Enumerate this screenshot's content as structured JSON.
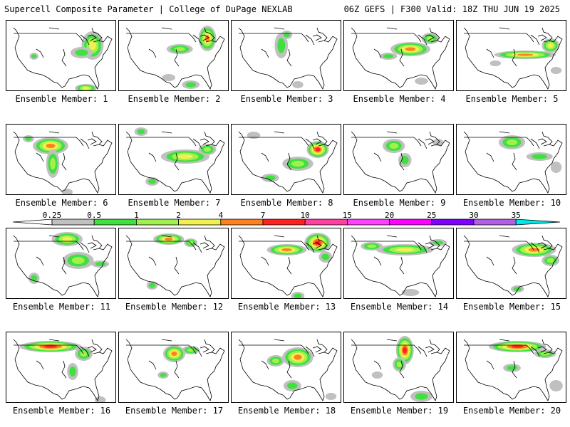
{
  "header": {
    "title_left": "Supercell Composite Parameter | College of DuPage NEXLAB",
    "title_right": "06Z GEFS | F300 Valid: 18Z THU JUN 19 2025"
  },
  "panels": [
    {
      "label": "Ensemble Member: 1",
      "blobs": [
        [
          0.78,
          0.35,
          0.1,
          0.2,
          3
        ],
        [
          0.68,
          0.45,
          0.1,
          0.08,
          1
        ],
        [
          0.25,
          0.5,
          0.04,
          0.05,
          1
        ],
        [
          0.72,
          0.95,
          0.1,
          0.06,
          3
        ]
      ]
    },
    {
      "label": "Ensemble Member: 2",
      "blobs": [
        [
          0.8,
          0.25,
          0.08,
          0.18,
          4
        ],
        [
          0.55,
          0.4,
          0.12,
          0.07,
          2
        ],
        [
          0.65,
          0.9,
          0.08,
          0.06,
          1
        ],
        [
          0.45,
          0.8,
          0.06,
          0.05,
          0
        ]
      ]
    },
    {
      "label": "Ensemble Member: 3",
      "blobs": [
        [
          0.45,
          0.35,
          0.06,
          0.18,
          1
        ],
        [
          0.5,
          0.2,
          0.05,
          0.06,
          1
        ],
        [
          0.6,
          0.9,
          0.05,
          0.05,
          0
        ]
      ]
    },
    {
      "label": "Ensemble Member: 4",
      "blobs": [
        [
          0.6,
          0.4,
          0.18,
          0.1,
          4
        ],
        [
          0.78,
          0.25,
          0.08,
          0.08,
          2
        ],
        [
          0.4,
          0.5,
          0.08,
          0.05,
          1
        ],
        [
          0.7,
          0.85,
          0.06,
          0.05,
          0
        ]
      ]
    },
    {
      "label": "Ensemble Member: 5",
      "blobs": [
        [
          0.62,
          0.48,
          0.28,
          0.06,
          4
        ],
        [
          0.85,
          0.35,
          0.08,
          0.1,
          3
        ],
        [
          0.9,
          0.7,
          0.05,
          0.05,
          0
        ],
        [
          0.35,
          0.6,
          0.05,
          0.04,
          0
        ]
      ]
    },
    {
      "label": "Ensemble Member: 6",
      "blobs": [
        [
          0.4,
          0.3,
          0.16,
          0.12,
          4
        ],
        [
          0.42,
          0.55,
          0.06,
          0.2,
          2
        ],
        [
          0.2,
          0.2,
          0.05,
          0.05,
          1
        ],
        [
          0.55,
          0.95,
          0.05,
          0.05,
          0
        ]
      ]
    },
    {
      "label": "Ensemble Member: 7",
      "blobs": [
        [
          0.6,
          0.45,
          0.22,
          0.1,
          3
        ],
        [
          0.8,
          0.35,
          0.08,
          0.08,
          2
        ],
        [
          0.2,
          0.1,
          0.06,
          0.06,
          1
        ],
        [
          0.3,
          0.8,
          0.06,
          0.06,
          1
        ]
      ]
    },
    {
      "label": "Ensemble Member: 8",
      "blobs": [
        [
          0.78,
          0.35,
          0.1,
          0.12,
          5
        ],
        [
          0.6,
          0.55,
          0.14,
          0.1,
          2
        ],
        [
          0.35,
          0.75,
          0.08,
          0.06,
          1
        ],
        [
          0.2,
          0.15,
          0.06,
          0.05,
          0
        ]
      ]
    },
    {
      "label": "Ensemble Member: 9",
      "blobs": [
        [
          0.45,
          0.3,
          0.1,
          0.1,
          2
        ],
        [
          0.55,
          0.5,
          0.06,
          0.1,
          1
        ],
        [
          0.85,
          0.25,
          0.05,
          0.05,
          0
        ]
      ]
    },
    {
      "label": "Ensemble Member: 10",
      "blobs": [
        [
          0.5,
          0.25,
          0.12,
          0.1,
          2
        ],
        [
          0.75,
          0.45,
          0.12,
          0.06,
          1
        ],
        [
          0.9,
          0.6,
          0.05,
          0.08,
          0
        ]
      ]
    },
    {
      "label": "Ensemble Member: 11",
      "blobs": [
        [
          0.55,
          0.15,
          0.14,
          0.1,
          3
        ],
        [
          0.65,
          0.45,
          0.14,
          0.12,
          2
        ],
        [
          0.85,
          0.5,
          0.08,
          0.05,
          1
        ],
        [
          0.25,
          0.7,
          0.05,
          0.08,
          1
        ]
      ]
    },
    {
      "label": "Ensemble Member: 12",
      "blobs": [
        [
          0.45,
          0.15,
          0.14,
          0.08,
          4
        ],
        [
          0.65,
          0.2,
          0.06,
          0.06,
          2
        ],
        [
          0.3,
          0.8,
          0.05,
          0.06,
          1
        ]
      ]
    },
    {
      "label": "Ensemble Member: 13",
      "blobs": [
        [
          0.78,
          0.2,
          0.12,
          0.14,
          5
        ],
        [
          0.5,
          0.3,
          0.18,
          0.08,
          4
        ],
        [
          0.85,
          0.4,
          0.06,
          0.08,
          1
        ],
        [
          0.6,
          0.95,
          0.06,
          0.06,
          1
        ]
      ]
    },
    {
      "label": "Ensemble Member: 14",
      "blobs": [
        [
          0.55,
          0.3,
          0.26,
          0.08,
          3
        ],
        [
          0.25,
          0.25,
          0.1,
          0.06,
          2
        ],
        [
          0.85,
          0.2,
          0.08,
          0.05,
          1
        ],
        [
          0.6,
          0.9,
          0.08,
          0.05,
          0
        ]
      ]
    },
    {
      "label": "Ensemble Member: 15",
      "blobs": [
        [
          0.7,
          0.3,
          0.2,
          0.1,
          4
        ],
        [
          0.85,
          0.45,
          0.08,
          0.08,
          2
        ],
        [
          0.55,
          0.85,
          0.06,
          0.05,
          1
        ]
      ]
    },
    {
      "label": "Ensemble Member: 16",
      "blobs": [
        [
          0.4,
          0.2,
          0.28,
          0.08,
          5
        ],
        [
          0.7,
          0.3,
          0.08,
          0.1,
          2
        ],
        [
          0.6,
          0.55,
          0.05,
          0.12,
          1
        ],
        [
          0.85,
          0.95,
          0.05,
          0.05,
          0
        ]
      ]
    },
    {
      "label": "Ensemble Member: 17",
      "blobs": [
        [
          0.5,
          0.3,
          0.1,
          0.12,
          4
        ],
        [
          0.65,
          0.25,
          0.08,
          0.06,
          2
        ],
        [
          0.4,
          0.6,
          0.05,
          0.05,
          1
        ]
      ]
    },
    {
      "label": "Ensemble Member: 18",
      "blobs": [
        [
          0.6,
          0.35,
          0.14,
          0.14,
          4
        ],
        [
          0.4,
          0.4,
          0.08,
          0.08,
          2
        ],
        [
          0.55,
          0.75,
          0.08,
          0.08,
          1
        ],
        [
          0.9,
          0.9,
          0.05,
          0.05,
          0
        ]
      ]
    },
    {
      "label": "Ensemble Member: 19",
      "blobs": [
        [
          0.55,
          0.25,
          0.08,
          0.2,
          5
        ],
        [
          0.5,
          0.45,
          0.06,
          0.1,
          2
        ],
        [
          0.7,
          0.9,
          0.1,
          0.08,
          1
        ],
        [
          0.3,
          0.6,
          0.05,
          0.05,
          0
        ]
      ]
    },
    {
      "label": "Ensemble Member: 20",
      "blobs": [
        [
          0.55,
          0.2,
          0.26,
          0.08,
          5
        ],
        [
          0.8,
          0.3,
          0.1,
          0.06,
          2
        ],
        [
          0.5,
          0.5,
          0.08,
          0.06,
          1
        ],
        [
          0.9,
          0.75,
          0.06,
          0.08,
          0
        ]
      ]
    }
  ],
  "colorbar": {
    "ticks": [
      "0.25",
      "0.5",
      "1",
      "2",
      "4",
      "7",
      "10",
      "15",
      "20",
      "25",
      "30",
      "35"
    ],
    "colors": [
      "#c0c0c0",
      "#40e040",
      "#a0f050",
      "#f0f050",
      "#ff8020",
      "#ff2020",
      "#ff40a0",
      "#ff40ff",
      "#ff00ff",
      "#8000ff",
      "#b060e0",
      "#00e8e8"
    ]
  }
}
